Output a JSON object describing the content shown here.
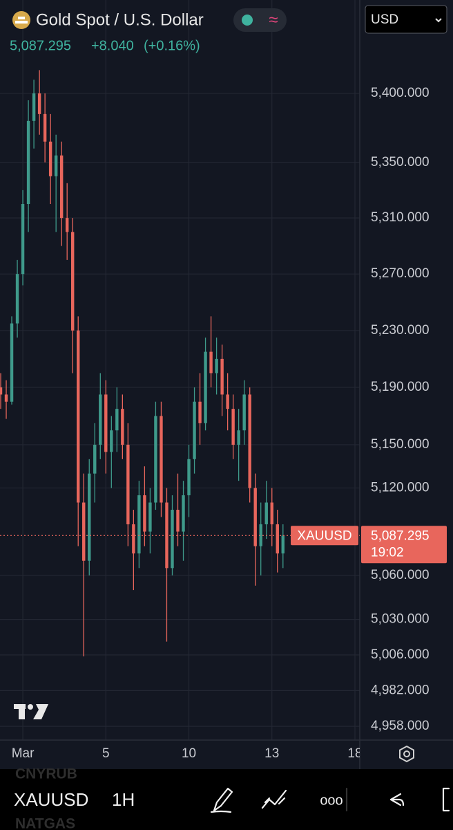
{
  "header": {
    "title": "Gold Spot / U.S. Dollar",
    "status_icon": "≈",
    "currency": "USD",
    "price": "5,087.295",
    "change": "+8.040",
    "change_percent": "(+0.16%)"
  },
  "chart_data": {
    "type": "candlestick",
    "log_scale": true,
    "grid": true,
    "up_color": "#3f9a8b",
    "down_color": "#e8665c",
    "x": [
      -0.8,
      -0.6,
      -0.4,
      -0.2,
      0,
      0.2,
      0.4,
      0.6,
      0.8,
      1,
      1.2,
      1.4,
      1.6,
      1.8,
      2,
      2.2,
      2.4,
      2.6,
      2.8,
      3,
      3.2,
      3.4,
      3.6,
      3.8,
      4,
      4.2,
      4.4,
      4.6,
      4.8,
      5,
      5.2,
      5.4,
      5.6,
      5.8,
      6,
      6.2,
      6.4,
      6.6,
      6.8,
      7,
      7.2,
      7.4,
      7.6,
      7.8,
      8,
      8.2,
      8.4,
      8.6,
      8.8,
      9,
      9.2,
      9.4
    ],
    "open": [
      5190,
      5185,
      5180,
      5235,
      5270,
      5320,
      5380,
      5400,
      5385,
      5365,
      5340,
      5355,
      5310,
      5300,
      5230,
      5110,
      5070,
      5130,
      5150,
      5185,
      5145,
      5160,
      5175,
      5150,
      5095,
      5075,
      5115,
      5090,
      5110,
      5170,
      5110,
      5065,
      5105,
      5090,
      5115,
      5140,
      5180,
      5165,
      5215,
      5200,
      5210,
      5185,
      5175,
      5150,
      5160,
      5185,
      5120,
      5080,
      5095,
      5110,
      5095,
      5075
    ],
    "high": [
      5200,
      5195,
      5240,
      5280,
      5330,
      5395,
      5410,
      5417,
      5400,
      5385,
      5370,
      5365,
      5335,
      5310,
      5240,
      5130,
      5140,
      5165,
      5200,
      5195,
      5170,
      5190,
      5185,
      5165,
      5105,
      5125,
      5135,
      5120,
      5180,
      5180,
      5120,
      5115,
      5130,
      5125,
      5150,
      5190,
      5200,
      5225,
      5240,
      5225,
      5220,
      5200,
      5185,
      5175,
      5195,
      5190,
      5130,
      5110,
      5125,
      5120,
      5105,
      5095
    ],
    "low": [
      5175,
      5168,
      5178,
      5225,
      5262,
      5300,
      5360,
      5370,
      5350,
      5320,
      5300,
      5290,
      5280,
      5200,
      5080,
      5005,
      5060,
      5110,
      5140,
      5130,
      5120,
      5145,
      5140,
      5080,
      5050,
      5065,
      5080,
      5075,
      5105,
      5100,
      5015,
      5060,
      5080,
      5070,
      5100,
      5130,
      5150,
      5160,
      5190,
      5185,
      5170,
      5160,
      5140,
      5125,
      5150,
      5110,
      5053,
      5060,
      5085,
      5080,
      5062,
      5065
    ],
    "close": [
      5185,
      5180,
      5235,
      5270,
      5320,
      5380,
      5400,
      5385,
      5365,
      5340,
      5355,
      5310,
      5300,
      5230,
      5110,
      5070,
      5130,
      5150,
      5185,
      5145,
      5160,
      5175,
      5150,
      5095,
      5075,
      5115,
      5090,
      5110,
      5170,
      5110,
      5065,
      5105,
      5090,
      5115,
      5140,
      5180,
      5165,
      5215,
      5200,
      5210,
      5185,
      5175,
      5150,
      5160,
      5185,
      5120,
      5080,
      5095,
      5110,
      5095,
      5075,
      5087.295
    ],
    "ylim": [
      4948.8,
      5468.5
    ],
    "yticks": [
      {
        "value": 5400,
        "label": "5,400.000"
      },
      {
        "value": 5350,
        "label": "5,350.000"
      },
      {
        "value": 5310,
        "label": "5,310.000"
      },
      {
        "value": 5270,
        "label": "5,270.000"
      },
      {
        "value": 5230,
        "label": "5,230.000"
      },
      {
        "value": 5190,
        "label": "5,190.000"
      },
      {
        "value": 5150,
        "label": "5,150.000"
      },
      {
        "value": 5120,
        "label": "5,120.000"
      },
      {
        "value": 5060,
        "label": "5,060.000"
      },
      {
        "value": 5030,
        "label": "5,030.000"
      },
      {
        "value": 5006,
        "label": "5,006.000"
      },
      {
        "value": 4982,
        "label": "4,982.000"
      },
      {
        "value": 4958,
        "label": "4,958.000"
      }
    ],
    "xlim": [
      -0.825,
      12.175
    ],
    "xticks": [
      {
        "value": 0,
        "label": "Mar"
      },
      {
        "value": 3,
        "label": "5"
      },
      {
        "value": 6,
        "label": "10"
      },
      {
        "value": 9,
        "label": "13"
      },
      {
        "value": 12,
        "label": "18"
      }
    ],
    "last_price": {
      "value": 5087.295,
      "label": "5,087.295"
    },
    "symbol": "XAUUSD",
    "countdown": "19:02"
  },
  "toolbar": {
    "above": "CNYRUB",
    "symbol": "XAUUSD",
    "interval": "1H",
    "more": "ooo",
    "below": "NATGAS"
  }
}
